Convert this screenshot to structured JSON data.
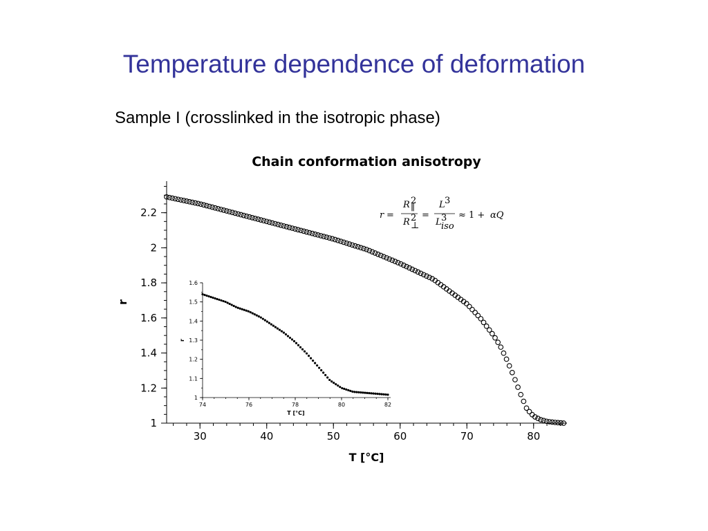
{
  "slide": {
    "title": "Temperature dependence of deformation",
    "subtitle": "Sample I (crosslinked in the isotropic phase)"
  },
  "chart_data": [
    {
      "type": "scatter",
      "title": "Chain conformation anisotropy",
      "xlabel": "T [°C]",
      "ylabel": "r",
      "xlim": [
        25,
        85
      ],
      "ylim": [
        1.0,
        2.38
      ],
      "xticks": [
        30,
        40,
        50,
        60,
        70,
        80
      ],
      "yticks": [
        1,
        1.2,
        1.4,
        1.6,
        1.8,
        2,
        2.2
      ],
      "ytick_labels": [
        "1",
        "1.2",
        "1.4",
        "1.6",
        "1.8",
        "2",
        "2.2"
      ],
      "marker": "open-circle",
      "grid": false,
      "annotation": "r = R∥² / R⊥² = L³ / L³iso ≈ 1 + αQ",
      "series": [
        {
          "x": [
            25,
            30,
            35,
            40,
            45,
            50,
            55,
            60,
            65,
            70,
            72,
            74,
            75,
            76,
            77,
            78,
            79,
            80,
            81,
            82,
            83,
            84.5
          ],
          "y": [
            2.29,
            2.25,
            2.2,
            2.15,
            2.1,
            2.05,
            1.99,
            1.91,
            1.82,
            1.68,
            1.6,
            1.5,
            1.44,
            1.36,
            1.27,
            1.17,
            1.08,
            1.04,
            1.02,
            1.01,
            1.005,
            1.0
          ]
        }
      ]
    },
    {
      "type": "scatter",
      "title": "",
      "xlabel": "T [°C]",
      "ylabel": "r",
      "xlim": [
        74,
        82
      ],
      "ylim": [
        1.0,
        1.6
      ],
      "xticks": [
        74,
        76,
        78,
        80,
        82
      ],
      "yticks": [
        1,
        1.1,
        1.2,
        1.3,
        1.4,
        1.5,
        1.6
      ],
      "ytick_labels": [
        "1",
        "1.1",
        "1.2",
        "1.3",
        "1.4",
        "1.5",
        "1.6"
      ],
      "marker": "filled-circle",
      "grid": false,
      "series": [
        {
          "x": [
            74,
            74.5,
            75,
            75.5,
            76,
            76.5,
            77,
            77.5,
            78,
            78.5,
            79,
            79.5,
            80,
            80.5,
            81,
            81.5,
            82
          ],
          "y": [
            1.54,
            1.52,
            1.5,
            1.47,
            1.45,
            1.42,
            1.38,
            1.34,
            1.29,
            1.23,
            1.16,
            1.09,
            1.05,
            1.03,
            1.025,
            1.02,
            1.015
          ]
        }
      ]
    }
  ]
}
